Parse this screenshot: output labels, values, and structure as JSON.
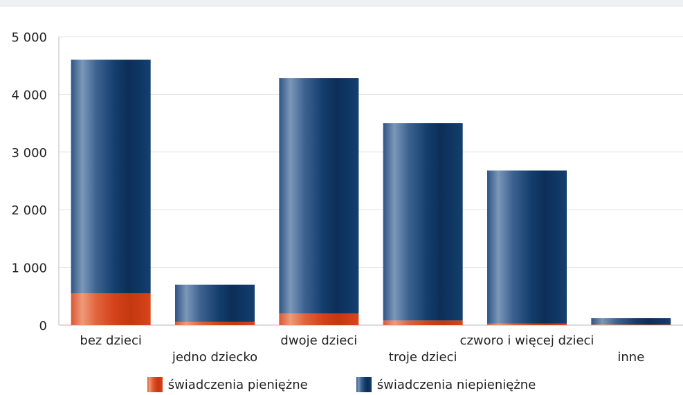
{
  "chart_data": {
    "type": "bar",
    "stacked": true,
    "title": "",
    "xlabel": "",
    "ylabel": "",
    "ylim": [
      0,
      5000
    ],
    "yticks": [
      0,
      1000,
      2000,
      3000,
      4000,
      5000
    ],
    "ytick_labels": [
      "0",
      "1 000",
      "2 000",
      "3 000",
      "4 000",
      "5 000"
    ],
    "grid": true,
    "legend_position": "bottom",
    "categories": [
      "bez dzieci",
      "jedno dziecko",
      "dwoje dzieci",
      "troje dzieci",
      "czworo i więcej dzieci",
      "inne"
    ],
    "series": [
      {
        "name": "świadczenia pieniężne",
        "color": "#d9441c",
        "values": [
          550,
          60,
          200,
          80,
          30,
          10
        ]
      },
      {
        "name": "świadczenia niepieniężne",
        "color": "#143e6e",
        "values": [
          4050,
          640,
          4080,
          3420,
          2650,
          110
        ]
      }
    ]
  }
}
